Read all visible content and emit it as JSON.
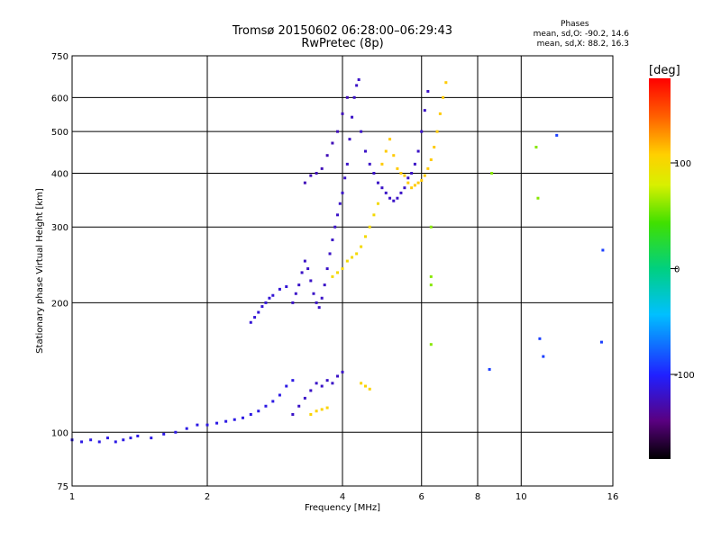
{
  "header": {
    "title_line1": "Tromsø 20150602 06:28:00–06:29:43",
    "title_line2": "RwPretec (8p)",
    "stats_head": "Phases",
    "stats_o": "mean, sd,O: -90.2, 14.6",
    "stats_x": "mean, sd,X:  88.2, 16.3"
  },
  "colorbar": {
    "label": "[deg]",
    "ticks": [
      "100",
      "0",
      "-100"
    ],
    "tick_values": [
      100,
      0,
      -100
    ],
    "range": [
      -180,
      180
    ]
  },
  "chart_data": {
    "type": "scatter",
    "title": "Tromsø 20150602 06:28:00–06:29:43",
    "subtitle": "RwPretec (8p)",
    "xlabel": "Frequency [MHz]",
    "ylabel": "Stationary phase Virtual Height [km]",
    "xscale": "log",
    "yscale": "log",
    "xlim": [
      1,
      16
    ],
    "ylim": [
      75,
      750
    ],
    "xticks": [
      1,
      2,
      4,
      6,
      8,
      10,
      16
    ],
    "xtick_labels": [
      "1",
      "2",
      "4",
      "6",
      "8",
      "10",
      "16"
    ],
    "yticks": [
      75,
      100,
      200,
      300,
      400,
      500,
      600,
      750
    ],
    "ytick_labels": [
      "75",
      "100",
      "200",
      "300",
      "400",
      "500",
      "600",
      "750"
    ],
    "grid": true,
    "series": [
      {
        "color_phase": -110,
        "points": [
          [
            1.0,
            96
          ],
          [
            1.05,
            95
          ],
          [
            1.1,
            96
          ],
          [
            1.15,
            95
          ],
          [
            1.2,
            97
          ],
          [
            1.25,
            95
          ],
          [
            1.3,
            96
          ],
          [
            1.35,
            97
          ],
          [
            1.4,
            98
          ],
          [
            1.5,
            97
          ],
          [
            1.6,
            99
          ],
          [
            1.7,
            100
          ],
          [
            1.8,
            102
          ],
          [
            1.9,
            104
          ],
          [
            2.0,
            104
          ],
          [
            2.1,
            105
          ],
          [
            2.2,
            106
          ],
          [
            2.3,
            107
          ],
          [
            2.4,
            108
          ],
          [
            2.5,
            110
          ],
          [
            2.6,
            112
          ],
          [
            2.7,
            115
          ],
          [
            2.8,
            118
          ],
          [
            2.9,
            122
          ],
          [
            3.0,
            128
          ],
          [
            3.1,
            132
          ]
        ]
      },
      {
        "color_phase": -115,
        "points": [
          [
            2.5,
            180
          ],
          [
            2.55,
            185
          ],
          [
            2.6,
            190
          ],
          [
            2.65,
            196
          ],
          [
            2.7,
            200
          ],
          [
            2.75,
            205
          ],
          [
            2.8,
            208
          ],
          [
            2.9,
            215
          ],
          [
            3.0,
            218
          ]
        ]
      },
      {
        "color_phase": -120,
        "points": [
          [
            3.1,
            200
          ],
          [
            3.15,
            210
          ],
          [
            3.2,
            220
          ],
          [
            3.25,
            235
          ],
          [
            3.3,
            250
          ],
          [
            3.35,
            240
          ],
          [
            3.4,
            225
          ],
          [
            3.45,
            210
          ],
          [
            3.5,
            200
          ],
          [
            3.55,
            195
          ],
          [
            3.6,
            205
          ],
          [
            3.65,
            220
          ],
          [
            3.7,
            240
          ],
          [
            3.75,
            260
          ],
          [
            3.8,
            280
          ],
          [
            3.85,
            300
          ],
          [
            3.9,
            320
          ],
          [
            3.95,
            340
          ],
          [
            4.0,
            360
          ],
          [
            4.05,
            390
          ],
          [
            4.1,
            420
          ],
          [
            4.15,
            480
          ],
          [
            4.2,
            540
          ],
          [
            4.25,
            600
          ],
          [
            4.3,
            640
          ],
          [
            4.35,
            660
          ]
        ]
      },
      {
        "color_phase": -125,
        "points": [
          [
            3.3,
            380
          ],
          [
            3.4,
            395
          ],
          [
            3.5,
            400
          ],
          [
            3.6,
            410
          ],
          [
            3.7,
            440
          ],
          [
            3.8,
            470
          ],
          [
            3.9,
            500
          ],
          [
            4.0,
            550
          ],
          [
            4.1,
            600
          ]
        ]
      },
      {
        "color_phase": -120,
        "points": [
          [
            4.4,
            500
          ],
          [
            4.5,
            450
          ],
          [
            4.6,
            420
          ],
          [
            4.7,
            400
          ],
          [
            4.8,
            380
          ],
          [
            4.9,
            370
          ],
          [
            5.0,
            360
          ],
          [
            5.1,
            350
          ],
          [
            5.2,
            345
          ],
          [
            5.3,
            350
          ],
          [
            5.4,
            360
          ],
          [
            5.5,
            370
          ],
          [
            5.6,
            390
          ],
          [
            5.7,
            400
          ],
          [
            5.8,
            420
          ],
          [
            5.9,
            450
          ],
          [
            6.0,
            500
          ],
          [
            6.1,
            560
          ],
          [
            6.2,
            620
          ]
        ]
      },
      {
        "color_phase": -120,
        "points": [
          [
            3.1,
            110
          ],
          [
            3.2,
            115
          ],
          [
            3.3,
            120
          ],
          [
            3.4,
            125
          ],
          [
            3.5,
            130
          ],
          [
            3.6,
            128
          ],
          [
            3.7,
            132
          ],
          [
            3.8,
            130
          ],
          [
            3.9,
            135
          ],
          [
            4.0,
            138
          ]
        ]
      },
      {
        "color_phase": 100,
        "points": [
          [
            3.8,
            230
          ],
          [
            3.9,
            235
          ],
          [
            4.0,
            240
          ],
          [
            4.1,
            250
          ],
          [
            4.2,
            255
          ],
          [
            4.3,
            260
          ],
          [
            4.4,
            270
          ],
          [
            4.5,
            285
          ],
          [
            4.6,
            300
          ],
          [
            4.7,
            320
          ],
          [
            4.8,
            340
          ]
        ]
      },
      {
        "color_phase": 110,
        "points": [
          [
            4.9,
            420
          ],
          [
            5.0,
            450
          ],
          [
            5.1,
            480
          ],
          [
            5.2,
            440
          ],
          [
            5.3,
            410
          ],
          [
            5.4,
            400
          ],
          [
            5.5,
            395
          ],
          [
            5.6,
            380
          ],
          [
            5.7,
            370
          ],
          [
            5.8,
            375
          ],
          [
            5.9,
            380
          ],
          [
            6.0,
            385
          ],
          [
            6.1,
            395
          ],
          [
            6.2,
            410
          ],
          [
            6.3,
            430
          ],
          [
            6.4,
            460
          ],
          [
            6.5,
            500
          ],
          [
            6.6,
            550
          ],
          [
            6.7,
            600
          ],
          [
            6.8,
            650
          ]
        ]
      },
      {
        "color_phase": 105,
        "points": [
          [
            3.4,
            110
          ],
          [
            3.5,
            112
          ],
          [
            3.6,
            113
          ],
          [
            3.7,
            114
          ],
          [
            4.4,
            130
          ],
          [
            4.5,
            128
          ],
          [
            4.6,
            126
          ]
        ]
      },
      {
        "color_phase": 60,
        "points": [
          [
            6.3,
            160
          ],
          [
            6.3,
            220
          ],
          [
            6.3,
            230
          ],
          [
            6.3,
            300
          ],
          [
            8.6,
            400
          ],
          [
            10.8,
            460
          ],
          [
            10.9,
            350
          ]
        ]
      },
      {
        "color_phase": -90,
        "points": [
          [
            8.5,
            140
          ],
          [
            11.0,
            165
          ],
          [
            11.2,
            150
          ],
          [
            12.0,
            490
          ],
          [
            15.2,
            265
          ],
          [
            15.1,
            162
          ]
        ]
      }
    ]
  }
}
